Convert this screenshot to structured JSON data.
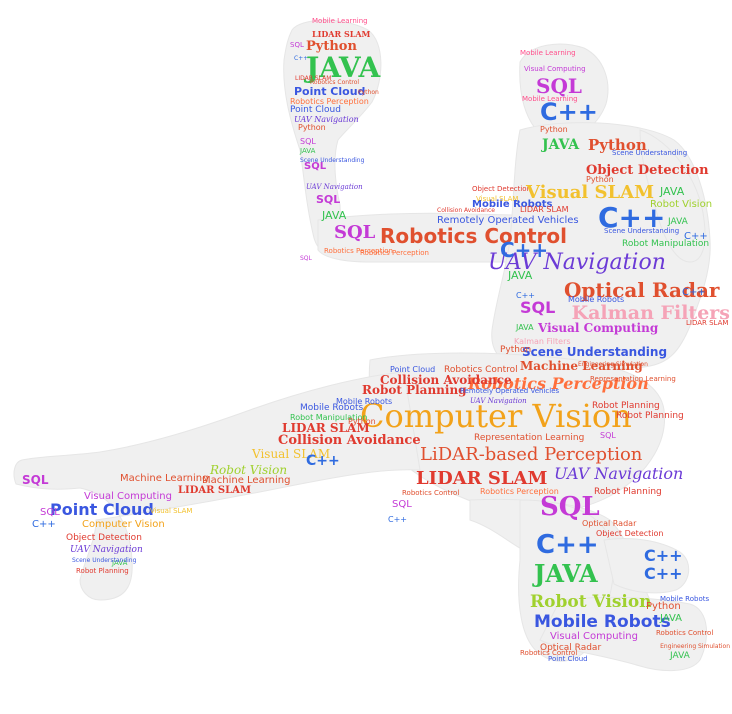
{
  "cloud": {
    "words": [
      {
        "text": "Mobile Learning",
        "color": "#ff4f8b"
      },
      {
        "text": "LIDAR SLAM",
        "color": "#e03a2f"
      },
      {
        "text": "C++",
        "color": "#2f6be0"
      },
      {
        "text": "SQL",
        "color": "#c43ad6"
      },
      {
        "text": "Python",
        "color": "#e0502f"
      },
      {
        "text": "JAVA",
        "color": "#33c24f"
      },
      {
        "text": "Robotics Control",
        "color": "#e0502f"
      },
      {
        "text": "Point Cloud",
        "color": "#3a57e0"
      },
      {
        "text": "Robotics Perception",
        "color": "#ff6f3c"
      },
      {
        "text": "UAV Navigation",
        "color": "#6b3ad6"
      },
      {
        "text": "Visual Computing",
        "color": "#c43ad6"
      },
      {
        "text": "Scene Understanding",
        "color": "#3a57e0"
      },
      {
        "text": "Object Detection",
        "color": "#e03a2f"
      },
      {
        "text": "Optical Radar",
        "color": "#e0502f"
      },
      {
        "text": "Visual SLAM",
        "color": "#f2c12e"
      },
      {
        "text": "Mobile Robots",
        "color": "#3a57e0"
      },
      {
        "text": "Robot Vision",
        "color": "#a0d12e"
      },
      {
        "text": "Collision Avoidance",
        "color": "#e03a2f"
      },
      {
        "text": "Remotely Operated Vehicles",
        "color": "#3a57e0"
      },
      {
        "text": "Robot Manipulation",
        "color": "#33c24f"
      },
      {
        "text": "Kalman Filters",
        "color": "#f5a3b7"
      },
      {
        "text": "Machine Learning",
        "color": "#e0502f"
      },
      {
        "text": "Robot Planning",
        "color": "#e03a2f"
      },
      {
        "text": "Computer Vision",
        "color": "#f2a21a"
      },
      {
        "text": "Representation Learning",
        "color": "#e0502f"
      },
      {
        "text": "LiDAR-based Perception",
        "color": "#e0502f"
      },
      {
        "text": "Engineering Simulation",
        "color": "#e0502f"
      }
    ]
  }
}
